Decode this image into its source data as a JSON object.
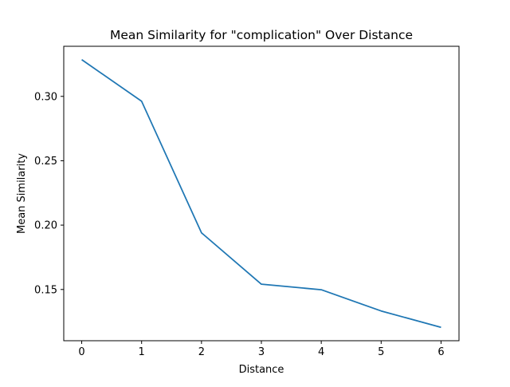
{
  "chart_data": {
    "type": "line",
    "title": "Mean Similarity for \"complication\" Over Distance",
    "xlabel": "Distance",
    "ylabel": "Mean Similarity",
    "x": [
      0,
      1,
      2,
      3,
      4,
      5,
      6
    ],
    "series": [
      {
        "values": [
          0.3285,
          0.2962,
          0.194,
          0.1541,
          0.1498,
          0.1333,
          0.1206
        ],
        "color": "#1f77b4"
      }
    ],
    "xlim": [
      -0.3,
      6.3
    ],
    "ylim": [
      0.1102,
      0.3389
    ],
    "xticks": [
      "0",
      "1",
      "2",
      "3",
      "4",
      "5",
      "6"
    ],
    "yticks": [
      "0.15",
      "0.20",
      "0.25",
      "0.30"
    ],
    "grid": false,
    "legend": "none"
  }
}
